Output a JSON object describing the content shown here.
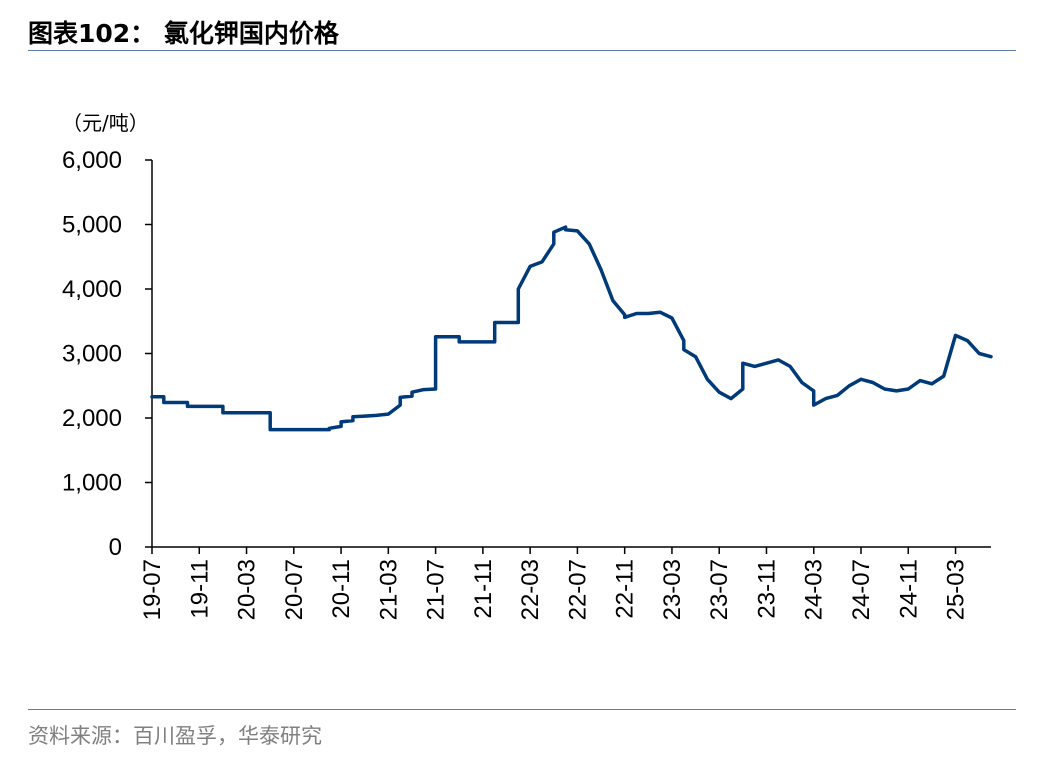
{
  "header": {
    "title": "图表102：  氯化钾国内价格"
  },
  "footer": {
    "source": "资料来源：百川盈孚，华泰研究"
  },
  "chart_data": {
    "type": "line",
    "title": "图表102：  氯化钾国内价格",
    "ylabel": "（元/吨）",
    "xlabel": "",
    "ylim": [
      0,
      6000
    ],
    "yticks": [
      0,
      1000,
      2000,
      3000,
      4000,
      5000,
      6000
    ],
    "ytick_labels": [
      "0",
      "1,000",
      "2,000",
      "3,000",
      "4,000",
      "5,000",
      "6,000"
    ],
    "xlim": [
      "2019-07",
      "2025-06"
    ],
    "xtick_labels": [
      "19-07",
      "19-11",
      "20-03",
      "20-07",
      "20-11",
      "21-03",
      "21-07",
      "21-11",
      "22-03",
      "22-07",
      "22-11",
      "23-03",
      "23-07",
      "23-11",
      "24-03",
      "24-07",
      "24-11",
      "25-03"
    ],
    "grid": false,
    "legend": "none",
    "line_color": "#003a78",
    "series": [
      {
        "name": "",
        "points": [
          [
            "2019-07",
            2330
          ],
          [
            "2019-08",
            2330
          ],
          [
            "2019-08",
            2240
          ],
          [
            "2019-10",
            2240
          ],
          [
            "2019-10",
            2180
          ],
          [
            "2020-01",
            2180
          ],
          [
            "2020-01",
            2080
          ],
          [
            "2020-05",
            2080
          ],
          [
            "2020-05",
            1820
          ],
          [
            "2020-10",
            1820
          ],
          [
            "2020-10",
            1840
          ],
          [
            "2020-11",
            1870
          ],
          [
            "2020-11",
            1940
          ],
          [
            "2020-12",
            1960
          ],
          [
            "2020-12",
            2020
          ],
          [
            "2021-01",
            2030
          ],
          [
            "2021-02",
            2040
          ],
          [
            "2021-03",
            2060
          ],
          [
            "2021-04",
            2200
          ],
          [
            "2021-04",
            2320
          ],
          [
            "2021-05",
            2340
          ],
          [
            "2021-05",
            2400
          ],
          [
            "2021-06",
            2440
          ],
          [
            "2021-07",
            2450
          ],
          [
            "2021-07",
            2750
          ],
          [
            "2021-07",
            3260
          ],
          [
            "2021-09",
            3260
          ],
          [
            "2021-09",
            3180
          ],
          [
            "2021-12",
            3180
          ],
          [
            "2021-12",
            3480
          ],
          [
            "2022-02",
            3480
          ],
          [
            "2022-02",
            4000
          ],
          [
            "2022-03",
            4350
          ],
          [
            "2022-04",
            4420
          ],
          [
            "2022-05",
            4700
          ],
          [
            "2022-05",
            4880
          ],
          [
            "2022-06",
            4960
          ],
          [
            "2022-06",
            4920
          ],
          [
            "2022-07",
            4900
          ],
          [
            "2022-08",
            4700
          ],
          [
            "2022-09",
            4300
          ],
          [
            "2022-10",
            3820
          ],
          [
            "2022-11",
            3600
          ],
          [
            "2022-11",
            3560
          ],
          [
            "2022-12",
            3620
          ],
          [
            "2023-01",
            3620
          ],
          [
            "2023-02",
            3640
          ],
          [
            "2023-03",
            3550
          ],
          [
            "2023-04",
            3200
          ],
          [
            "2023-04",
            3060
          ],
          [
            "2023-05",
            2950
          ],
          [
            "2023-06",
            2600
          ],
          [
            "2023-07",
            2400
          ],
          [
            "2023-08",
            2300
          ],
          [
            "2023-09",
            2450
          ],
          [
            "2023-09",
            2850
          ],
          [
            "2023-10",
            2800
          ],
          [
            "2023-11",
            2850
          ],
          [
            "2023-12",
            2900
          ],
          [
            "2024-01",
            2800
          ],
          [
            "2024-02",
            2550
          ],
          [
            "2024-03",
            2420
          ],
          [
            "2024-03",
            2200
          ],
          [
            "2024-04",
            2300
          ],
          [
            "2024-05",
            2350
          ],
          [
            "2024-06",
            2500
          ],
          [
            "2024-07",
            2600
          ],
          [
            "2024-08",
            2550
          ],
          [
            "2024-09",
            2450
          ],
          [
            "2024-10",
            2420
          ],
          [
            "2024-11",
            2450
          ],
          [
            "2024-12",
            2580
          ],
          [
            "2025-01",
            2530
          ],
          [
            "2025-02",
            2650
          ],
          [
            "2025-03",
            3280
          ],
          [
            "2025-04",
            3200
          ],
          [
            "2025-05",
            3000
          ],
          [
            "2025-06",
            2950
          ]
        ]
      }
    ]
  }
}
